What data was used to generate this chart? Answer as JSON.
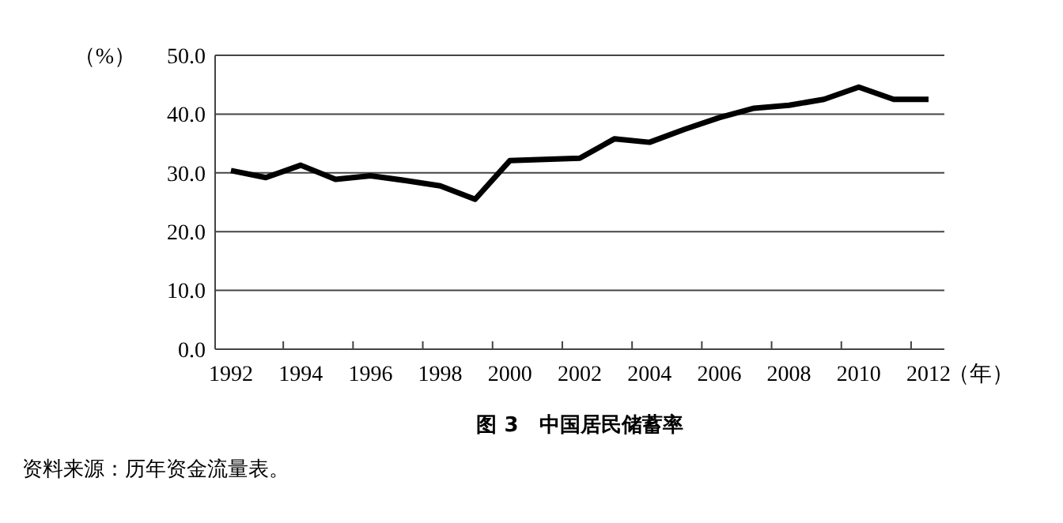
{
  "chart_data": {
    "type": "line",
    "title": "图 3　中国居民储蓄率",
    "ylabel": "（%）",
    "xlabel": "（年）",
    "categories": [
      "1992",
      null,
      "1994",
      null,
      "1996",
      null,
      "1998",
      null,
      "2000",
      null,
      "2002",
      null,
      "2004",
      null,
      "2006",
      null,
      "2008",
      null,
      "2010",
      null,
      "2012"
    ],
    "series": [
      {
        "color": "#000000",
        "values": [
          30.4,
          29.2,
          31.3,
          28.9,
          29.5,
          28.7,
          27.8,
          25.5,
          32.1,
          32.3,
          32.5,
          35.8,
          35.2,
          37.4,
          39.4,
          41.0,
          41.5,
          42.5,
          44.6,
          42.5,
          42.5
        ]
      }
    ],
    "ylim": [
      0,
      50
    ],
    "yticks": [
      {
        "value": 0,
        "label": "0.0"
      },
      {
        "value": 10,
        "label": "10.0"
      },
      {
        "value": 20,
        "label": "20.0"
      },
      {
        "value": 30,
        "label": "30.0"
      },
      {
        "value": 40,
        "label": "40.0"
      },
      {
        "value": 50,
        "label": "50.0"
      }
    ],
    "grid": "y",
    "marker": "none",
    "line_style": "solid",
    "annotations": [
      "资料来源：历年资金流量表。"
    ]
  }
}
